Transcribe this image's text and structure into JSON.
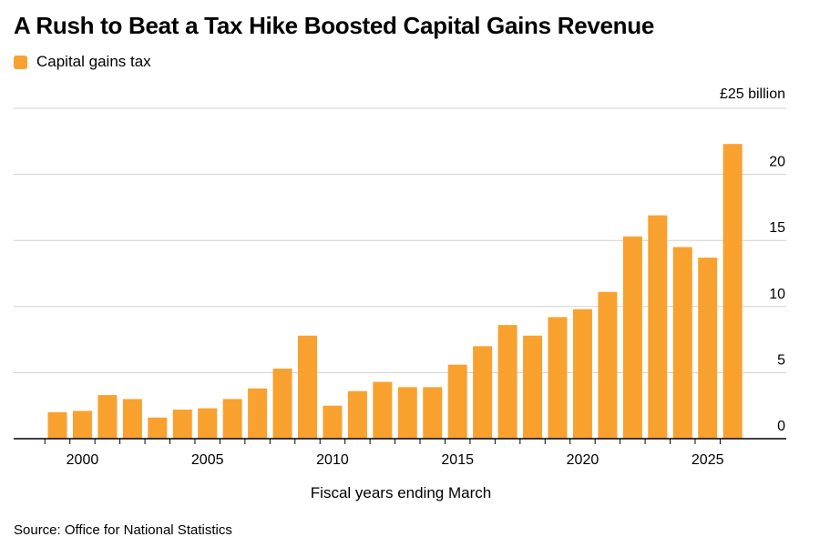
{
  "chart_data": {
    "type": "bar",
    "title": "A Rush to Beat a Tax Hike Boosted Capital Gains Revenue",
    "series": [
      {
        "name": "Capital gains tax",
        "color": "#f9a12e",
        "values": [
          2.0,
          2.1,
          3.3,
          3.0,
          1.6,
          2.2,
          2.3,
          3.0,
          3.8,
          5.3,
          7.8,
          2.5,
          3.6,
          4.3,
          3.9,
          3.9,
          5.6,
          7.0,
          8.6,
          7.8,
          9.2,
          9.8,
          11.1,
          15.3,
          16.9,
          14.5,
          13.7,
          22.3
        ]
      }
    ],
    "x": [
      1999,
      2000,
      2001,
      2002,
      2003,
      2004,
      2005,
      2006,
      2007,
      2008,
      2009,
      2010,
      2011,
      2012,
      2013,
      2014,
      2015,
      2016,
      2017,
      2018,
      2019,
      2020,
      2021,
      2022,
      2023,
      2024,
      2025,
      2026
    ],
    "xlabel": "Fiscal years ending March",
    "x_tick_labels": [
      "2000",
      "2005",
      "2010",
      "2015",
      "2020",
      "2025"
    ],
    "y_tick_labels": [
      "0",
      "5",
      "10",
      "15",
      "20",
      "£25 billion"
    ],
    "ylim": [
      0,
      25
    ],
    "grid": true,
    "legend": "top-left",
    "source": "Source: Office for National Statistics"
  }
}
